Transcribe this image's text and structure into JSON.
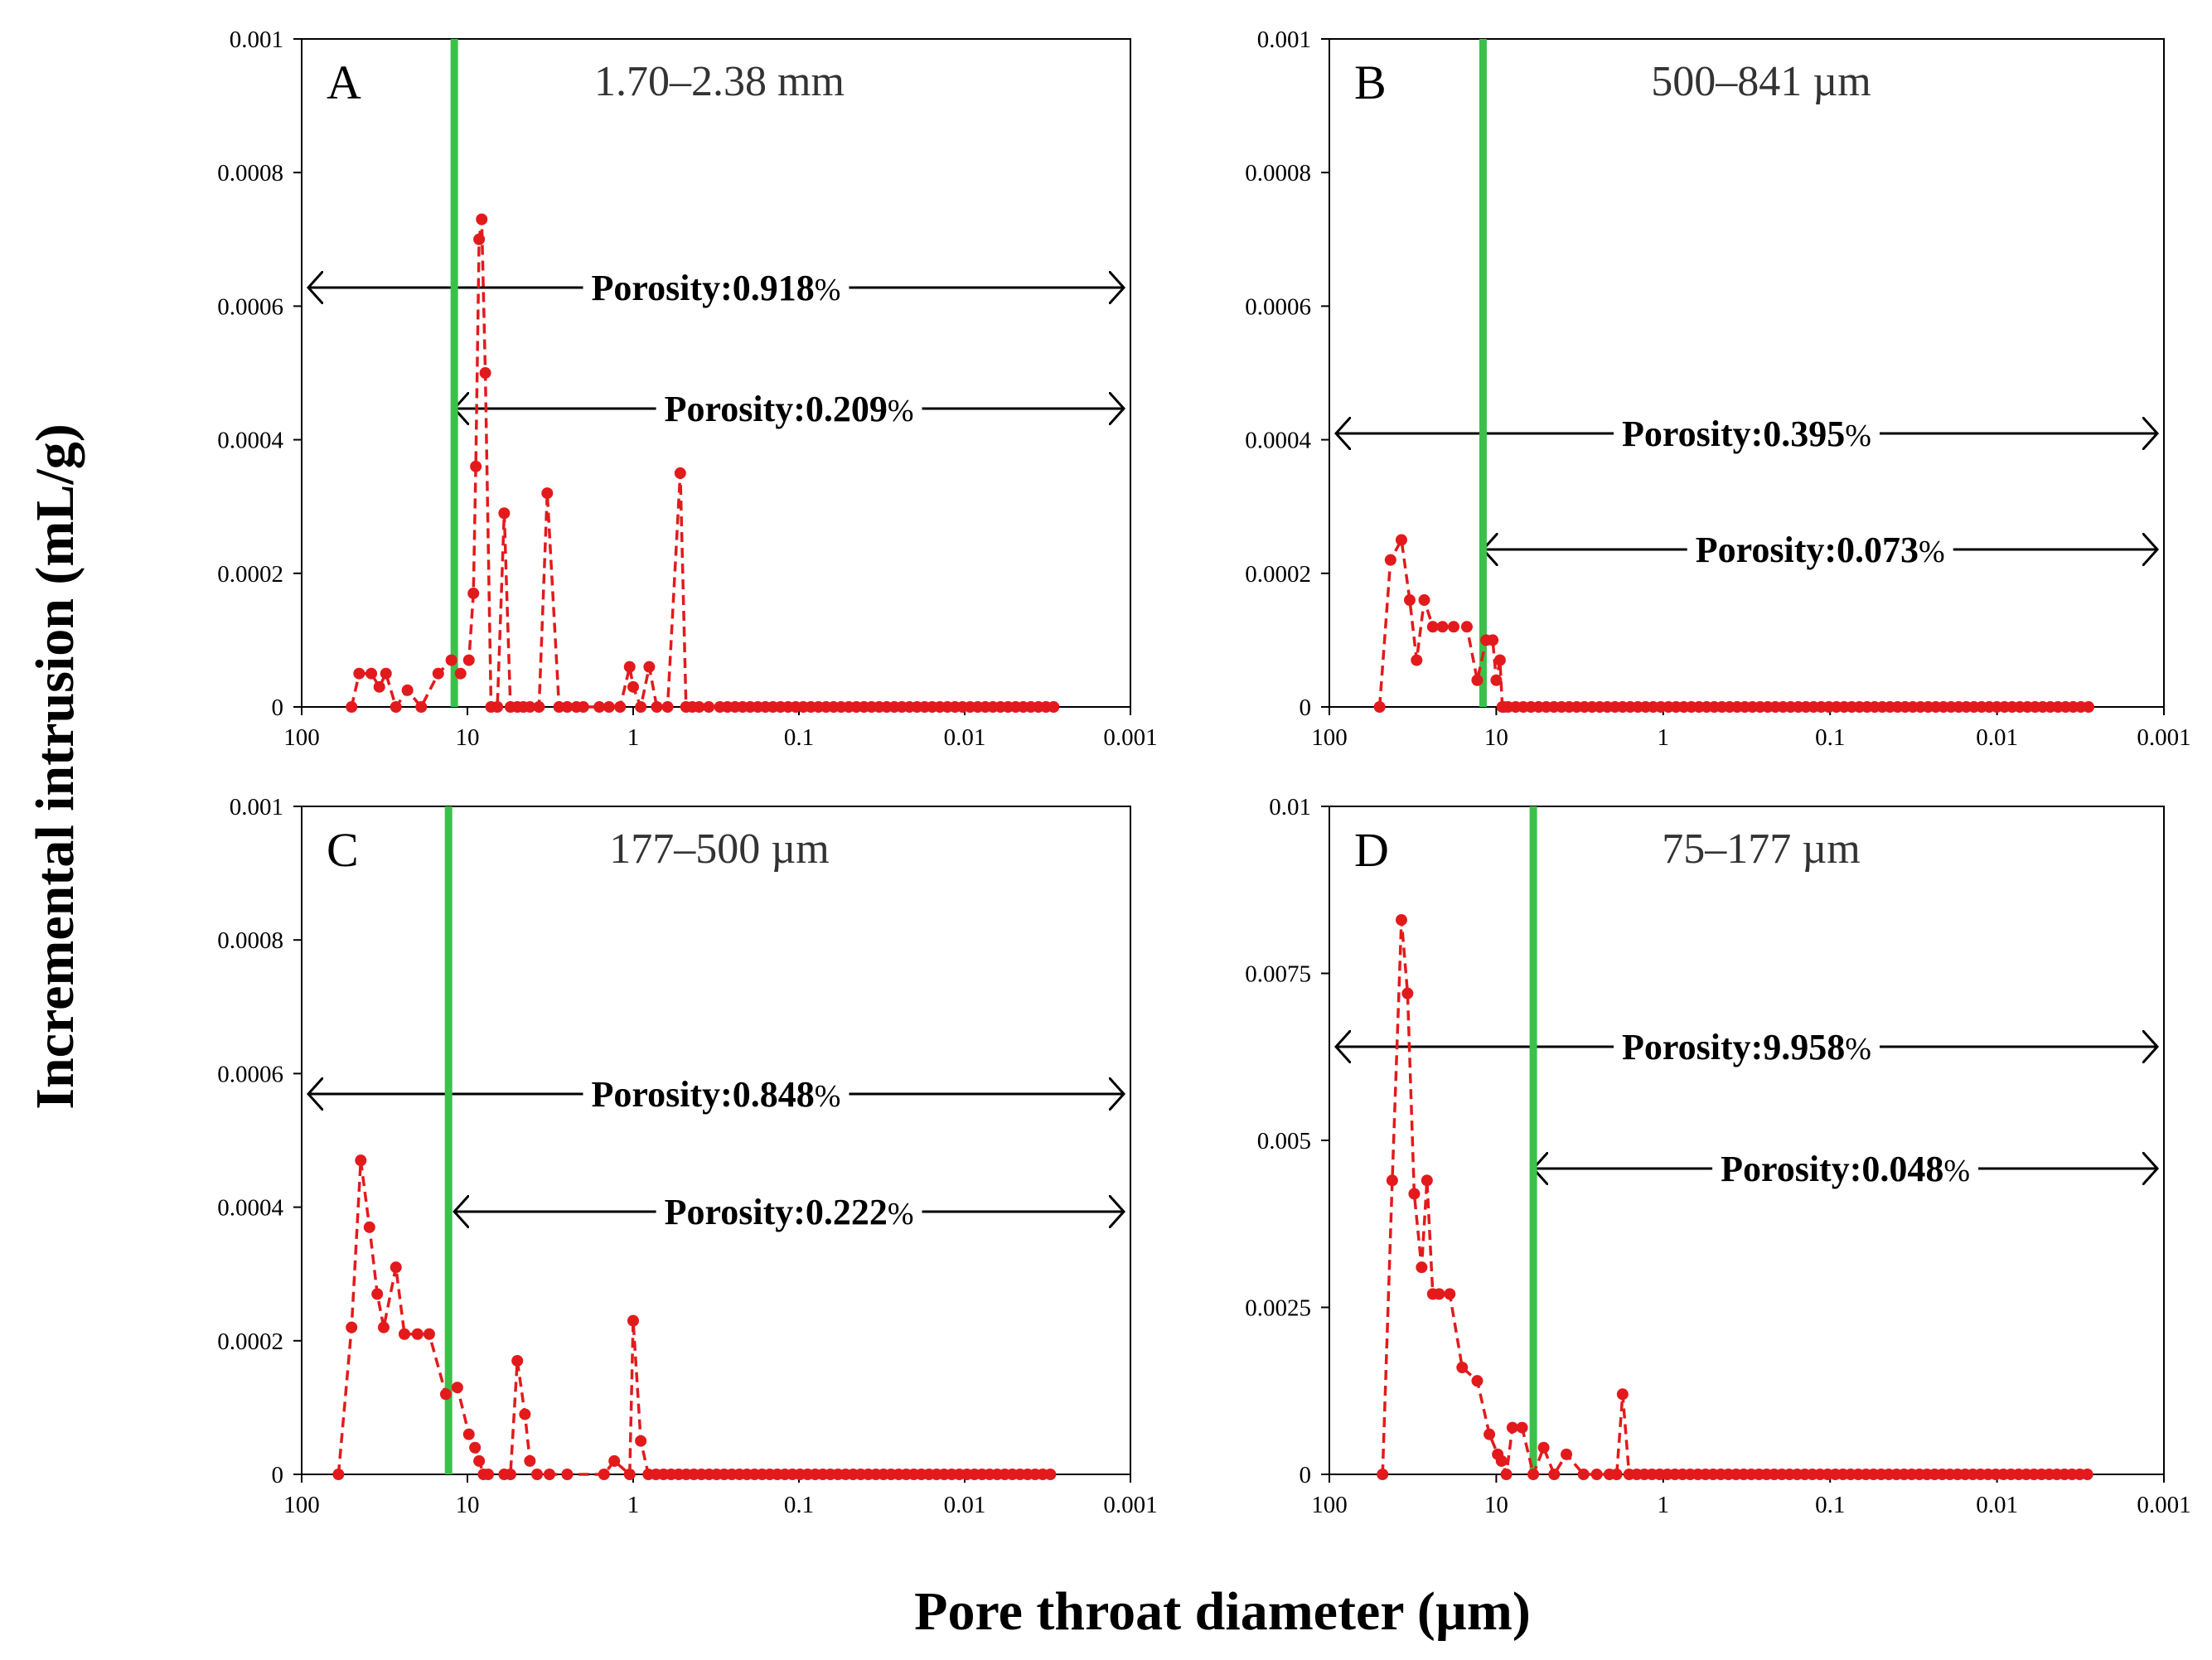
{
  "chart_data": {
    "type": "line",
    "xlabel": "Pore throat diameter (µm)",
    "ylabel": "Incremental intrusion (mL/g)",
    "x_scale": "log",
    "x_reversed": true,
    "xlim": [
      100,
      0.001
    ],
    "x_ticks": [
      "100",
      "10",
      "1",
      "0.1",
      "0.01",
      "0.001"
    ],
    "series_color": "#e31a1c",
    "threshold_color": "#3cc04a",
    "panels": [
      {
        "letter": "A",
        "title": "1.70–2.38 mm",
        "ylim": [
          0,
          0.001
        ],
        "y_ticks": [
          "0",
          "0.0002",
          "0.0004",
          "0.0006",
          "0.0008",
          "0.001"
        ],
        "threshold_x": 12,
        "annotations": [
          {
            "label": "Porosity:",
            "value": "0.918",
            "unit": "%",
            "from_x": 100,
            "to_x": 0.001
          },
          {
            "label": "Porosity:",
            "value": "0.209",
            "unit": "%",
            "from_x": 12,
            "to_x": 0.001
          }
        ],
        "x": [
          50,
          45,
          38,
          34,
          31,
          27,
          23,
          19,
          15,
          12.5,
          11,
          9.8,
          9.2,
          8.9,
          8.5,
          8.2,
          7.8,
          7.2,
          6.6,
          6.0,
          5.5,
          5.0,
          4.6,
          4.2,
          3.7,
          3.3,
          2.8,
          2.5,
          2.2,
          2.0,
          1.6,
          1.4,
          1.2,
          1.05,
          1.0,
          0.9,
          0.8,
          0.72,
          0.62,
          0.52,
          0.48,
          0.44,
          0.4,
          0.35,
          0.3
        ],
        "y": [
          0,
          5e-05,
          5e-05,
          3e-05,
          5e-05,
          0,
          2.5e-05,
          0,
          5e-05,
          7e-05,
          5e-05,
          7e-05,
          0.00017,
          0.00036,
          0.0007,
          0.00073,
          0.0005,
          0,
          0,
          0.00029,
          0,
          0,
          0,
          0,
          0,
          0.00032,
          0,
          0,
          0,
          0,
          0,
          0,
          0,
          6e-05,
          3e-05,
          0,
          6e-05,
          0,
          0,
          0.00035,
          0,
          0,
          0,
          0,
          0
        ]
      },
      {
        "letter": "B",
        "title": "500–841 µm",
        "ylim": [
          0,
          0.001
        ],
        "y_ticks": [
          "0",
          "0.0002",
          "0.0004",
          "0.0006",
          "0.0008",
          "0.001"
        ],
        "threshold_x": 12,
        "annotations": [
          {
            "label": "Porosity:",
            "value": "0.395",
            "unit": "%",
            "from_x": 100,
            "to_x": 0.001
          },
          {
            "label": "Porosity:",
            "value": "0.073",
            "unit": "%",
            "from_x": 12,
            "to_x": 0.001
          }
        ],
        "x": [
          50,
          43,
          37,
          33,
          30,
          27,
          24,
          21,
          18,
          15,
          13,
          11.5,
          10.5,
          10,
          9.5,
          9.2,
          9.0,
          8.5
        ],
        "y": [
          0,
          0.00022,
          0.00025,
          0.00016,
          7e-05,
          0.00016,
          0.00012,
          0.00012,
          0.00012,
          0.00012,
          4e-05,
          0.0001,
          0.0001,
          4e-05,
          7e-05,
          0,
          0,
          0
        ]
      },
      {
        "letter": "C",
        "title": "177–500 µm",
        "ylim": [
          0,
          0.001
        ],
        "y_ticks": [
          "0",
          "0.0002",
          "0.0004",
          "0.0006",
          "0.0008",
          "0.001"
        ],
        "threshold_x": 13,
        "annotations": [
          {
            "label": "Porosity:",
            "value": "0.848",
            "unit": "%",
            "from_x": 100,
            "to_x": 0.001
          },
          {
            "label": "Porosity:",
            "value": "0.222",
            "unit": "%",
            "from_x": 12,
            "to_x": 0.001
          }
        ],
        "x": [
          60,
          50,
          44,
          39,
          35,
          32,
          27,
          24,
          20,
          17,
          13.5,
          11.5,
          9.8,
          9.0,
          8.5,
          8.0,
          7.5,
          6.0,
          5.5,
          5.0,
          4.5,
          4.2,
          3.8,
          3.2,
          2.5,
          1.5,
          1.3,
          1.05,
          1.0,
          0.9
        ],
        "y": [
          0,
          0.00022,
          0.00047,
          0.00037,
          0.00027,
          0.00022,
          0.00031,
          0.00021,
          0.00021,
          0.00021,
          0.00012,
          0.00013,
          6e-05,
          4e-05,
          2e-05,
          0,
          0,
          0,
          0,
          0.00017,
          9e-05,
          2e-05,
          0,
          0,
          0,
          0,
          2e-05,
          0,
          0.00023,
          5e-05
        ]
      },
      {
        "letter": "D",
        "title": "75–177 µm",
        "ylim": [
          0,
          0.01
        ],
        "y_ticks": [
          "0",
          "0.0025",
          "0.005",
          "0.0075",
          "0.01"
        ],
        "threshold_x": 6,
        "annotations": [
          {
            "label": "Porosity:",
            "value": "9.958",
            "unit": "%",
            "from_x": 100,
            "to_x": 0.001
          },
          {
            "label": "Porosity:",
            "value": "0.048",
            "unit": "%",
            "from_x": 6,
            "to_x": 0.001
          }
        ],
        "x": [
          48,
          42,
          37,
          34,
          31,
          28,
          26,
          24,
          22,
          19,
          16,
          13,
          11,
          9.8,
          9.3,
          8.7,
          8.0,
          7.0,
          6.0,
          5.2,
          4.5,
          3.8,
          3.0,
          2.5,
          2.1,
          1.9,
          1.75,
          1.6
        ],
        "y": [
          0,
          0.0044,
          0.0083,
          0.0072,
          0.0042,
          0.0031,
          0.0044,
          0.0027,
          0.0027,
          0.0027,
          0.0016,
          0.0014,
          0.0006,
          0.0003,
          0.0002,
          0,
          0.0007,
          0.0007,
          0,
          0.0004,
          0,
          0.0003,
          0,
          0,
          0,
          0,
          0.0012,
          0
        ]
      }
    ]
  }
}
